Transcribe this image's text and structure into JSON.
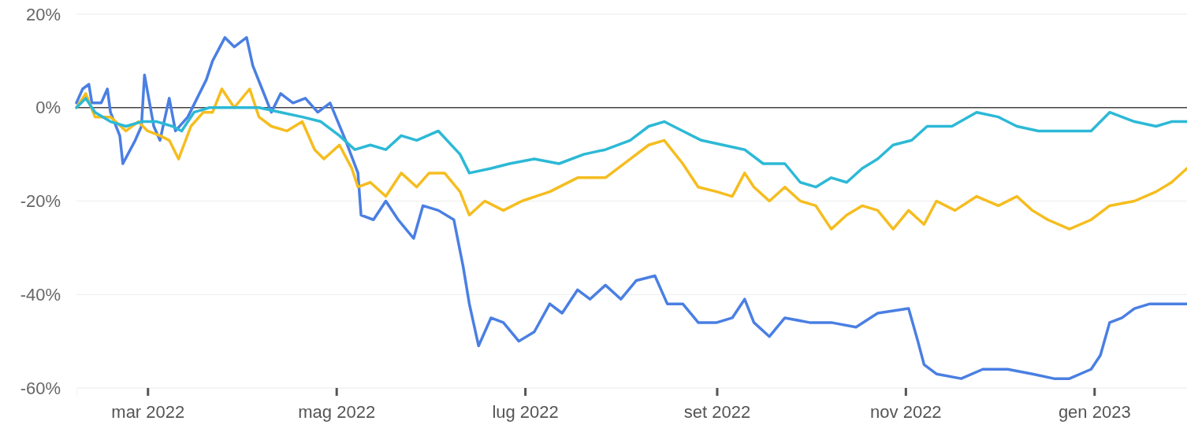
{
  "chart_data": {
    "type": "line",
    "xlim": [
      "2022-02-06",
      "2023-01-31"
    ],
    "ylim": [
      -60,
      20
    ],
    "xticks": [
      {
        "value": "2022-03-01",
        "label": "mar 2022"
      },
      {
        "value": "2022-05-01",
        "label": "mag 2022"
      },
      {
        "value": "2022-07-01",
        "label": "lug 2022"
      },
      {
        "value": "2022-09-01",
        "label": "set 2022"
      },
      {
        "value": "2022-11-01",
        "label": "nov 2022"
      },
      {
        "value": "2023-01-01",
        "label": "gen 2023"
      }
    ],
    "yticks": [
      {
        "value": -60,
        "label": "-60%"
      },
      {
        "value": -40,
        "label": "-40%"
      },
      {
        "value": -20,
        "label": "-20%"
      },
      {
        "value": 0,
        "label": "0%"
      },
      {
        "value": 20,
        "label": "20%"
      }
    ],
    "grid": "y",
    "line_style": "solid",
    "marker": "none",
    "ref_lines": [
      {
        "axis": "y",
        "value": 0,
        "color": "#444444"
      }
    ],
    "series": [
      {
        "color": "#4a7fe3",
        "x": [
          "2022-02-06",
          "2022-02-08",
          "2022-02-10",
          "2022-02-11",
          "2022-02-14",
          "2022-02-16",
          "2022-02-17",
          "2022-02-20",
          "2022-02-21",
          "2022-02-25",
          "2022-02-27",
          "2022-02-28",
          "2022-03-03",
          "2022-03-05",
          "2022-03-08",
          "2022-03-10",
          "2022-03-14",
          "2022-03-17",
          "2022-03-20",
          "2022-03-22",
          "2022-03-26",
          "2022-03-29",
          "2022-04-02",
          "2022-04-04",
          "2022-04-07",
          "2022-04-10",
          "2022-04-13",
          "2022-04-17",
          "2022-04-21",
          "2022-04-25",
          "2022-04-29",
          "2022-05-04",
          "2022-05-08",
          "2022-05-09",
          "2022-05-13",
          "2022-05-17",
          "2022-05-21",
          "2022-05-26",
          "2022-05-29",
          "2022-06-03",
          "2022-06-08",
          "2022-06-11",
          "2022-06-13",
          "2022-06-16",
          "2022-06-20",
          "2022-06-24",
          "2022-06-29",
          "2022-07-04",
          "2022-07-09",
          "2022-07-13",
          "2022-07-18",
          "2022-07-22",
          "2022-07-27",
          "2022-08-01",
          "2022-08-06",
          "2022-08-12",
          "2022-08-16",
          "2022-08-21",
          "2022-08-26",
          "2022-09-01",
          "2022-09-06",
          "2022-09-10",
          "2022-09-13",
          "2022-09-18",
          "2022-09-23",
          "2022-10-01",
          "2022-10-08",
          "2022-10-16",
          "2022-10-23",
          "2022-11-02",
          "2022-11-05",
          "2022-11-07",
          "2022-11-11",
          "2022-11-19",
          "2022-11-26",
          "2022-12-04",
          "2022-12-12",
          "2022-12-19",
          "2022-12-24",
          "2022-12-31",
          "2023-01-03",
          "2023-01-06",
          "2023-01-10",
          "2023-01-14",
          "2023-01-19",
          "2023-01-24",
          "2023-01-31"
        ],
        "values": [
          1,
          4,
          5,
          1,
          1,
          4,
          -1,
          -6,
          -12,
          -7,
          -4,
          7,
          -4,
          -7,
          2,
          -5,
          -2,
          2,
          6,
          10,
          15,
          13,
          15,
          9,
          4,
          -1,
          3,
          1,
          2,
          -1,
          1,
          -7,
          -14,
          -23,
          -24,
          -20,
          -24,
          -28,
          -21,
          -22,
          -24,
          -34,
          -42,
          -51,
          -45,
          -46,
          -50,
          -48,
          -42,
          -44,
          -39,
          -41,
          -38,
          -41,
          -37,
          -36,
          -42,
          -42,
          -46,
          -46,
          -45,
          -41,
          -46,
          -49,
          -45,
          -46,
          -46,
          -47,
          -44,
          -43,
          -50,
          -55,
          -57,
          -58,
          -56,
          -56,
          -57,
          -58,
          -58,
          -56,
          -53,
          -46,
          -45,
          -43,
          -42,
          -42,
          -42
        ]
      },
      {
        "color": "#f5bd1f",
        "x": [
          "2022-02-06",
          "2022-02-09",
          "2022-02-12",
          "2022-02-17",
          "2022-02-22",
          "2022-02-26",
          "2022-03-01",
          "2022-03-05",
          "2022-03-08",
          "2022-03-11",
          "2022-03-15",
          "2022-03-19",
          "2022-03-22",
          "2022-03-25",
          "2022-03-29",
          "2022-04-03",
          "2022-04-06",
          "2022-04-10",
          "2022-04-15",
          "2022-04-20",
          "2022-04-24",
          "2022-04-27",
          "2022-05-02",
          "2022-05-06",
          "2022-05-08",
          "2022-05-12",
          "2022-05-17",
          "2022-05-22",
          "2022-05-27",
          "2022-05-31",
          "2022-06-05",
          "2022-06-10",
          "2022-06-13",
          "2022-06-18",
          "2022-06-24",
          "2022-06-30",
          "2022-07-09",
          "2022-07-18",
          "2022-07-27",
          "2022-08-04",
          "2022-08-10",
          "2022-08-15",
          "2022-08-21",
          "2022-08-26",
          "2022-09-01",
          "2022-09-06",
          "2022-09-10",
          "2022-09-13",
          "2022-09-18",
          "2022-09-23",
          "2022-09-28",
          "2022-10-03",
          "2022-10-08",
          "2022-10-13",
          "2022-10-18",
          "2022-10-23",
          "2022-10-28",
          "2022-11-02",
          "2022-11-07",
          "2022-11-11",
          "2022-11-17",
          "2022-11-24",
          "2022-12-01",
          "2022-12-07",
          "2022-12-12",
          "2022-12-17",
          "2022-12-24",
          "2022-12-31",
          "2023-01-06",
          "2023-01-14",
          "2023-01-21",
          "2023-01-26",
          "2023-01-31"
        ],
        "values": [
          0,
          3,
          -2,
          -2,
          -5,
          -3,
          -5,
          -6,
          -7,
          -11,
          -4,
          -1,
          -1,
          4,
          0,
          4,
          -2,
          -4,
          -5,
          -3,
          -9,
          -11,
          -8,
          -13,
          -17,
          -16,
          -19,
          -14,
          -17,
          -14,
          -14,
          -18,
          -23,
          -20,
          -22,
          -20,
          -18,
          -15,
          -15,
          -11,
          -8,
          -7,
          -12,
          -17,
          -18,
          -19,
          -14,
          -17,
          -20,
          -17,
          -20,
          -21,
          -26,
          -23,
          -21,
          -22,
          -26,
          -22,
          -25,
          -20,
          -22,
          -19,
          -21,
          -19,
          -22,
          -24,
          -26,
          -24,
          -21,
          -20,
          -18,
          -16,
          -13
        ]
      },
      {
        "color": "#2cb9d6",
        "x": [
          "2022-02-06",
          "2022-02-09",
          "2022-02-12",
          "2022-02-17",
          "2022-02-22",
          "2022-02-27",
          "2022-03-04",
          "2022-03-09",
          "2022-03-12",
          "2022-03-16",
          "2022-03-21",
          "2022-03-29",
          "2022-04-06",
          "2022-04-13",
          "2022-04-20",
          "2022-04-26",
          "2022-05-02",
          "2022-05-07",
          "2022-05-12",
          "2022-05-17",
          "2022-05-22",
          "2022-05-27",
          "2022-06-03",
          "2022-06-10",
          "2022-06-13",
          "2022-06-20",
          "2022-06-26",
          "2022-07-04",
          "2022-07-12",
          "2022-07-20",
          "2022-07-27",
          "2022-08-04",
          "2022-08-10",
          "2022-08-15",
          "2022-08-21",
          "2022-08-27",
          "2022-09-03",
          "2022-09-10",
          "2022-09-16",
          "2022-09-23",
          "2022-09-28",
          "2022-10-03",
          "2022-10-08",
          "2022-10-13",
          "2022-10-18",
          "2022-10-23",
          "2022-10-28",
          "2022-11-03",
          "2022-11-08",
          "2022-11-16",
          "2022-11-24",
          "2022-12-01",
          "2022-12-07",
          "2022-12-14",
          "2022-12-22",
          "2022-12-31",
          "2023-01-06",
          "2023-01-14",
          "2023-01-21",
          "2023-01-26",
          "2023-01-31"
        ],
        "values": [
          0,
          2,
          -1,
          -3,
          -4,
          -3,
          -3,
          -4,
          -5,
          -1,
          0,
          0,
          0,
          -1,
          -2,
          -3,
          -6,
          -9,
          -8,
          -9,
          -6,
          -7,
          -5,
          -10,
          -14,
          -13,
          -12,
          -11,
          -12,
          -10,
          -9,
          -7,
          -4,
          -3,
          -5,
          -7,
          -8,
          -9,
          -12,
          -12,
          -16,
          -17,
          -15,
          -16,
          -13,
          -11,
          -8,
          -7,
          -4,
          -4,
          -1,
          -2,
          -4,
          -5,
          -5,
          -5,
          -1,
          -3,
          -4,
          -3,
          -3
        ]
      }
    ]
  }
}
